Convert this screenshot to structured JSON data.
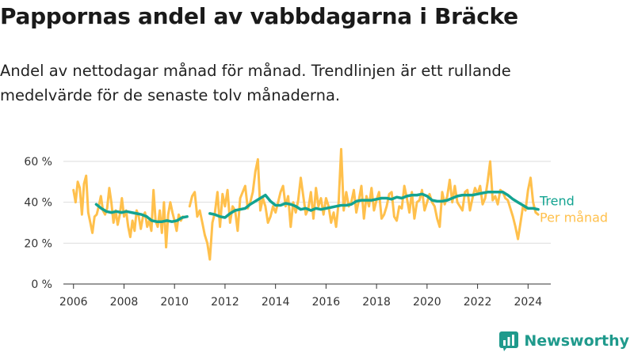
{
  "header": {
    "title": "Pappornas andel av vabbdagarna i Bräcke",
    "subtitle": "Andel av nettodagar månad för månad. Trendlinjen är ett rullande medelvärde för de senaste tolv månaderna."
  },
  "brand": {
    "name": "Newsworthy",
    "icon": "newsworthy-logo-icon",
    "color": "#1f9a8c"
  },
  "colors": {
    "monthly": "#FFC04C",
    "trend": "#13A391",
    "grid": "#dddddd",
    "axis": "#333333"
  },
  "chart_data": {
    "type": "line",
    "title": "Pappornas andel av vabbdagarna i Bräcke",
    "xlabel": "",
    "ylabel": "",
    "xlim": [
      2005.6,
      2024.9
    ],
    "ylim": [
      0,
      60
    ],
    "y_ticks": [
      0,
      20,
      40,
      60
    ],
    "y_tick_labels": [
      "0 %",
      "20 %",
      "40 %",
      "60 %"
    ],
    "x_ticks": [
      2006,
      2008,
      2010,
      2012,
      2014,
      2016,
      2018,
      2020,
      2022,
      2024
    ],
    "x_tick_labels": [
      "2006",
      "2008",
      "2010",
      "2012",
      "2014",
      "2016",
      "2018",
      "2020",
      "2022",
      "2024"
    ],
    "grid": true,
    "legend_position": "right",
    "series": [
      {
        "name": "Trend",
        "label": "Trend",
        "color": "#13A391",
        "segments": [
          {
            "x": [
              2006.9,
              2007.1,
              2007.3,
              2007.5,
              2007.7,
              2007.9,
              2008.1,
              2008.3,
              2008.5,
              2008.7,
              2008.9,
              2009.1,
              2009.3,
              2009.5,
              2009.7,
              2009.9,
              2010.1,
              2010.3,
              2010.5
            ],
            "y": [
              39,
              37,
              35.5,
              35,
              35.5,
              35,
              35.5,
              35,
              34.5,
              34,
              33,
              31,
              30.5,
              30.5,
              31,
              30.5,
              31,
              32.5,
              33
            ]
          },
          {
            "x": [
              2011.4,
              2011.6,
              2011.8,
              2012.0,
              2012.2,
              2012.4,
              2012.6,
              2012.8,
              2013.0,
              2013.2,
              2013.4,
              2013.6,
              2013.8,
              2014.0,
              2014.2,
              2014.4,
              2014.6,
              2014.8,
              2015.0,
              2015.2,
              2015.4,
              2015.6,
              2015.8,
              2016.0,
              2016.2,
              2016.4,
              2016.6,
              2016.8,
              2017.0,
              2017.2,
              2017.4,
              2017.6,
              2017.8,
              2018.0,
              2018.2,
              2018.4,
              2018.6,
              2018.8,
              2019.0,
              2019.2,
              2019.4,
              2019.6,
              2019.8,
              2020.0,
              2020.2,
              2020.4,
              2020.6,
              2020.8,
              2021.0,
              2021.2,
              2021.4,
              2021.6,
              2021.8,
              2022.0,
              2022.2,
              2022.4,
              2022.6,
              2022.8,
              2023.0,
              2023.2,
              2023.4,
              2023.6,
              2023.8,
              2024.0,
              2024.2,
              2024.4
            ],
            "y": [
              34.5,
              34,
              33,
              32.5,
              34.5,
              36,
              36.5,
              37,
              39,
              40.5,
              42,
              43.5,
              40.5,
              38.5,
              38.5,
              39.5,
              39,
              38,
              36.5,
              37,
              36,
              37,
              36.5,
              37,
              37.5,
              38,
              38.5,
              38.5,
              39,
              40.5,
              41,
              41,
              41,
              41.5,
              42,
              42,
              41.5,
              42.5,
              42,
              43,
              43.5,
              43.5,
              44,
              43,
              41,
              40.5,
              40.5,
              41,
              42,
              43,
              43.5,
              43.5,
              43.5,
              44,
              44.5,
              45,
              45,
              45,
              45,
              43.5,
              41.5,
              40,
              38.5,
              37,
              37,
              36.5
            ]
          }
        ]
      },
      {
        "name": "Per månad",
        "label": "Per månad",
        "color": "#FFC04C",
        "segments": [
          {
            "x": [
              2006.0,
              2006.083,
              2006.167,
              2006.25,
              2006.333,
              2006.417,
              2006.5,
              2006.583,
              2006.667,
              2006.75,
              2006.833,
              2006.917,
              2007.0,
              2007.083,
              2007.167,
              2007.25,
              2007.333,
              2007.417,
              2007.5,
              2007.583,
              2007.667,
              2007.75,
              2007.833,
              2007.917,
              2008.0,
              2008.083,
              2008.167,
              2008.25,
              2008.333,
              2008.417,
              2008.5,
              2008.583,
              2008.667,
              2008.75,
              2008.833,
              2008.917,
              2009.0,
              2009.083,
              2009.167,
              2009.25,
              2009.333,
              2009.417,
              2009.5,
              2009.583,
              2009.667,
              2009.75,
              2009.833,
              2009.917,
              2010.0,
              2010.083,
              2010.167,
              2010.25,
              2010.333
            ],
            "y": [
              46,
              40,
              50,
              47,
              34,
              49,
              53,
              35,
              30,
              25,
              33,
              34,
              38,
              43,
              36,
              34,
              37,
              47,
              40,
              30,
              36,
              29,
              34,
              42,
              33,
              36,
              28,
              23,
              31,
              26,
              36,
              33,
              27,
              33,
              35,
              28,
              31,
              26,
              46,
              31,
              28,
              36,
              25,
              40,
              18,
              34,
              40,
              35,
              31,
              26,
              34,
              31,
              33
            ]
          },
          {
            "x": [
              2010.6,
              2010.7,
              2010.8,
              2010.9,
              2011.0,
              2011.1,
              2011.2,
              2011.3,
              2011.4,
              2011.5,
              2011.6,
              2011.7,
              2011.8,
              2011.9,
              2012.0,
              2012.1,
              2012.2,
              2012.3,
              2012.4,
              2012.5,
              2012.6,
              2012.7,
              2012.8,
              2012.9,
              2013.0,
              2013.1,
              2013.2,
              2013.3,
              2013.4,
              2013.5,
              2013.6,
              2013.7,
              2013.8,
              2013.9,
              2014.0,
              2014.1,
              2014.2,
              2014.3,
              2014.4,
              2014.5,
              2014.6,
              2014.7,
              2014.8,
              2014.9,
              2015.0,
              2015.1,
              2015.2,
              2015.3,
              2015.4,
              2015.5,
              2015.6,
              2015.7,
              2015.8,
              2015.9,
              2016.0,
              2016.1,
              2016.2,
              2016.3,
              2016.4,
              2016.5,
              2016.6,
              2016.7,
              2016.8,
              2016.9,
              2017.0,
              2017.1,
              2017.2,
              2017.3,
              2017.4,
              2017.5,
              2017.6,
              2017.7,
              2017.8,
              2017.9,
              2018.0,
              2018.1,
              2018.2,
              2018.3,
              2018.4,
              2018.5,
              2018.6,
              2018.7,
              2018.8,
              2018.9,
              2019.0,
              2019.1,
              2019.2,
              2019.3,
              2019.4,
              2019.5,
              2019.6,
              2019.7,
              2019.8,
              2019.9,
              2020.0,
              2020.1,
              2020.2,
              2020.3,
              2020.4,
              2020.5,
              2020.6,
              2020.7,
              2020.8,
              2020.9,
              2021.0,
              2021.1,
              2021.2,
              2021.3,
              2021.4,
              2021.5,
              2021.6,
              2021.7,
              2021.8,
              2021.9,
              2022.0,
              2022.1,
              2022.2,
              2022.3,
              2022.4,
              2022.5,
              2022.6,
              2022.7,
              2022.8,
              2022.9,
              2023.0,
              2023.1,
              2023.2,
              2023.3,
              2023.4,
              2023.5,
              2023.6,
              2023.7,
              2023.8,
              2023.9,
              2024.0,
              2024.1,
              2024.2,
              2024.3,
              2024.4
            ],
            "y": [
              38,
              43,
              45,
              33,
              36,
              30,
              24,
              20,
              12,
              30,
              35,
              45,
              28,
              44,
              38,
              46,
              30,
              38,
              36,
              26,
              42,
              45,
              48,
              37,
              40,
              45,
              55,
              61,
              36,
              42,
              38,
              30,
              33,
              38,
              35,
              40,
              45,
              48,
              38,
              43,
              28,
              40,
              35,
              41,
              52,
              43,
              34,
              37,
              45,
              32,
              47,
              38,
              42,
              34,
              42,
              38,
              30,
              35,
              28,
              40,
              66,
              36,
              45,
              38,
              40,
              46,
              35,
              41,
              48,
              32,
              43,
              38,
              47,
              36,
              41,
              45,
              32,
              34,
              38,
              44,
              45,
              33,
              31,
              38,
              37,
              48,
              42,
              35,
              45,
              32,
              40,
              41,
              46,
              36,
              40,
              44,
              40,
              38,
              32,
              28,
              45,
              39,
              43,
              51,
              40,
              48,
              40,
              38,
              36,
              45,
              46,
              36,
              42,
              47,
              44,
              48,
              39,
              42,
              50,
              60,
              41,
              43,
              39,
              46,
              45,
              42,
              41,
              37,
              33,
              28,
              22,
              30,
              38,
              36,
              46,
              52,
              40,
              35,
              34
            ]
          }
        ]
      }
    ]
  }
}
